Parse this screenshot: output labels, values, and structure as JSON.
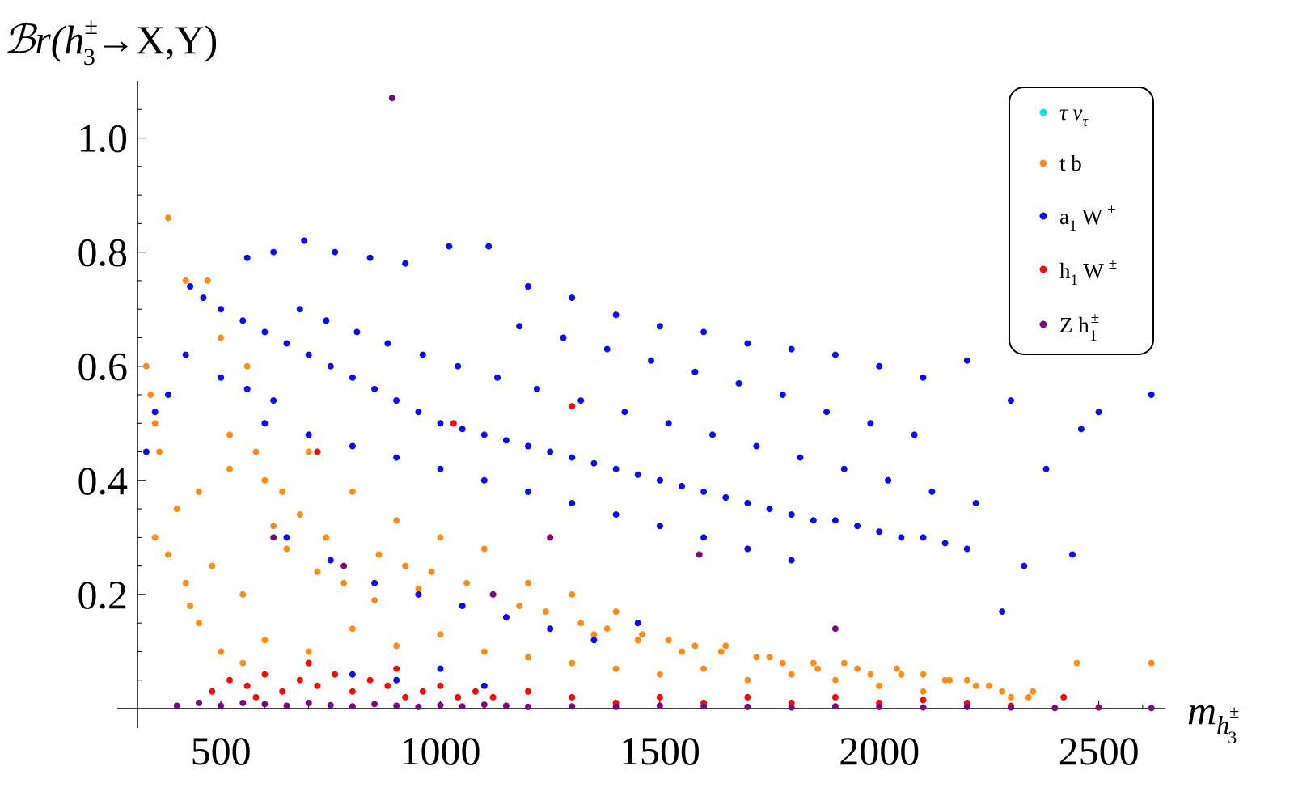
{
  "chart_data": {
    "type": "scatter",
    "title": "",
    "ylabel": {
      "prefix": "ℬr(",
      "h": "h",
      "sup": "±",
      "sub": "3",
      "suffix": "→X,Y)"
    },
    "xlabel": {
      "m": "m",
      "h": "h",
      "sup": "±",
      "sub": "3"
    },
    "xlim": [
      310,
      2650
    ],
    "ylim": [
      0,
      1.1
    ],
    "x_ticks": [
      500,
      1000,
      1500,
      2000,
      2500
    ],
    "x_tick_labels": [
      "500",
      "1000",
      "1500",
      "2000",
      "2500"
    ],
    "y_ticks": [
      0.2,
      0.4,
      0.6,
      0.8,
      1.0
    ],
    "y_tick_labels": [
      "0.2",
      "0.4",
      "0.6",
      "0.8",
      "1.0"
    ],
    "grid": false,
    "legend_position": "top-right",
    "series": [
      {
        "key": "tau",
        "name": {
          "main": "τ  ν",
          "sub": "τ",
          "sup": ""
        },
        "color": "#00e5e5",
        "points": []
      },
      {
        "key": "tb",
        "name": {
          "main": "t  b",
          "sub": "",
          "sup": ""
        },
        "color": "#ff8c14",
        "points": [
          [
            380,
            0.86
          ],
          [
            330,
            0.6
          ],
          [
            340,
            0.55
          ],
          [
            350,
            0.5
          ],
          [
            360,
            0.45
          ],
          [
            420,
            0.75
          ],
          [
            470,
            0.75
          ],
          [
            500,
            0.65
          ],
          [
            560,
            0.6
          ],
          [
            400,
            0.35
          ],
          [
            450,
            0.38
          ],
          [
            520,
            0.42
          ],
          [
            600,
            0.4
          ],
          [
            700,
            0.45
          ],
          [
            800,
            0.38
          ],
          [
            900,
            0.33
          ],
          [
            1000,
            0.3
          ],
          [
            1100,
            0.28
          ],
          [
            420,
            0.22
          ],
          [
            480,
            0.25
          ],
          [
            550,
            0.2
          ],
          [
            650,
            0.28
          ],
          [
            720,
            0.24
          ],
          [
            780,
            0.22
          ],
          [
            850,
            0.19
          ],
          [
            950,
            0.21
          ],
          [
            1050,
            0.18
          ],
          [
            1150,
            0.16
          ],
          [
            1250,
            0.14
          ],
          [
            1350,
            0.13
          ],
          [
            1450,
            0.12
          ],
          [
            1550,
            0.1
          ],
          [
            1650,
            0.11
          ],
          [
            1750,
            0.09
          ],
          [
            1850,
            0.08
          ],
          [
            1950,
            0.07
          ],
          [
            2050,
            0.06
          ],
          [
            2150,
            0.05
          ],
          [
            2250,
            0.04
          ],
          [
            2350,
            0.03
          ],
          [
            2450,
            0.08
          ],
          [
            2620,
            0.08
          ],
          [
            1300,
            0.2
          ],
          [
            1400,
            0.17
          ],
          [
            1200,
            0.22
          ],
          [
            600,
            0.12
          ],
          [
            700,
            0.1
          ],
          [
            800,
            0.14
          ],
          [
            900,
            0.11
          ],
          [
            1000,
            0.13
          ],
          [
            1100,
            0.1
          ],
          [
            1200,
            0.09
          ],
          [
            1300,
            0.08
          ],
          [
            1400,
            0.07
          ],
          [
            1500,
            0.06
          ],
          [
            1600,
            0.07
          ],
          [
            1700,
            0.05
          ],
          [
            1800,
            0.06
          ],
          [
            1900,
            0.05
          ],
          [
            2000,
            0.04
          ],
          [
            2100,
            0.03
          ],
          [
            2200,
            0.05
          ],
          [
            2300,
            0.02
          ],
          [
            450,
            0.15
          ],
          [
            500,
            0.1
          ],
          [
            550,
            0.08
          ],
          [
            350,
            0.3
          ],
          [
            380,
            0.27
          ],
          [
            430,
            0.18
          ],
          [
            620,
            0.32
          ],
          [
            680,
            0.34
          ],
          [
            740,
            0.3
          ],
          [
            860,
            0.27
          ],
          [
            920,
            0.25
          ],
          [
            980,
            0.24
          ],
          [
            1060,
            0.22
          ],
          [
            1120,
            0.2
          ],
          [
            1180,
            0.18
          ],
          [
            1240,
            0.17
          ],
          [
            1320,
            0.15
          ],
          [
            1380,
            0.14
          ],
          [
            1460,
            0.13
          ],
          [
            1520,
            0.12
          ],
          [
            1580,
            0.11
          ],
          [
            1640,
            0.1
          ],
          [
            1720,
            0.09
          ],
          [
            1780,
            0.08
          ],
          [
            1860,
            0.07
          ],
          [
            1920,
            0.08
          ],
          [
            1980,
            0.06
          ],
          [
            2040,
            0.07
          ],
          [
            2100,
            0.06
          ],
          [
            2160,
            0.05
          ],
          [
            2220,
            0.04
          ],
          [
            2280,
            0.03
          ],
          [
            2340,
            0.02
          ],
          [
            520,
            0.48
          ],
          [
            580,
            0.45
          ],
          [
            640,
            0.38
          ]
        ]
      },
      {
        "key": "aw",
        "name": {
          "main": "a",
          "sub": "1",
          "main2": " W",
          "sup": "±"
        },
        "color": "#0a0af5",
        "points": [
          [
            560,
            0.79
          ],
          [
            620,
            0.8
          ],
          [
            690,
            0.82
          ],
          [
            760,
            0.8
          ],
          [
            840,
            0.79
          ],
          [
            920,
            0.78
          ],
          [
            1020,
            0.81
          ],
          [
            1110,
            0.81
          ],
          [
            1200,
            0.74
          ],
          [
            1300,
            0.72
          ],
          [
            1400,
            0.69
          ],
          [
            1500,
            0.67
          ],
          [
            1600,
            0.66
          ],
          [
            1700,
            0.64
          ],
          [
            1800,
            0.63
          ],
          [
            1900,
            0.62
          ],
          [
            2000,
            0.6
          ],
          [
            2100,
            0.58
          ],
          [
            2200,
            0.61
          ],
          [
            2300,
            0.54
          ],
          [
            2500,
            0.52
          ],
          [
            2620,
            0.55
          ],
          [
            2460,
            0.49
          ],
          [
            2380,
            0.42
          ],
          [
            2330,
            0.25
          ],
          [
            2440,
            0.27
          ],
          [
            2280,
            0.17
          ],
          [
            430,
            0.74
          ],
          [
            460,
            0.72
          ],
          [
            500,
            0.7
          ],
          [
            550,
            0.68
          ],
          [
            600,
            0.66
          ],
          [
            650,
            0.64
          ],
          [
            700,
            0.62
          ],
          [
            750,
            0.6
          ],
          [
            800,
            0.58
          ],
          [
            850,
            0.56
          ],
          [
            900,
            0.54
          ],
          [
            950,
            0.52
          ],
          [
            1000,
            0.5
          ],
          [
            1050,
            0.49
          ],
          [
            1100,
            0.48
          ],
          [
            1150,
            0.47
          ],
          [
            1200,
            0.46
          ],
          [
            1250,
            0.45
          ],
          [
            1300,
            0.44
          ],
          [
            1350,
            0.43
          ],
          [
            1400,
            0.42
          ],
          [
            1450,
            0.41
          ],
          [
            1500,
            0.4
          ],
          [
            1550,
            0.39
          ],
          [
            1600,
            0.38
          ],
          [
            1650,
            0.37
          ],
          [
            1700,
            0.36
          ],
          [
            1750,
            0.35
          ],
          [
            1800,
            0.34
          ],
          [
            1850,
            0.33
          ],
          [
            1900,
            0.33
          ],
          [
            1950,
            0.32
          ],
          [
            2000,
            0.31
          ],
          [
            2050,
            0.3
          ],
          [
            2100,
            0.3
          ],
          [
            2150,
            0.29
          ],
          [
            2200,
            0.28
          ],
          [
            420,
            0.62
          ],
          [
            380,
            0.55
          ],
          [
            350,
            0.52
          ],
          [
            330,
            0.45
          ],
          [
            600,
            0.5
          ],
          [
            700,
            0.48
          ],
          [
            800,
            0.46
          ],
          [
            900,
            0.44
          ],
          [
            1000,
            0.42
          ],
          [
            1100,
            0.4
          ],
          [
            1200,
            0.38
          ],
          [
            1300,
            0.36
          ],
          [
            1400,
            0.34
          ],
          [
            1500,
            0.32
          ],
          [
            1600,
            0.3
          ],
          [
            1700,
            0.28
          ],
          [
            1800,
            0.26
          ],
          [
            650,
            0.3
          ],
          [
            750,
            0.26
          ],
          [
            850,
            0.22
          ],
          [
            950,
            0.2
          ],
          [
            1050,
            0.18
          ],
          [
            1150,
            0.16
          ],
          [
            1250,
            0.14
          ],
          [
            1350,
            0.12
          ],
          [
            1450,
            0.15
          ],
          [
            700,
            0.08
          ],
          [
            800,
            0.06
          ],
          [
            900,
            0.05
          ],
          [
            1000,
            0.07
          ],
          [
            1100,
            0.04
          ],
          [
            500,
            0.58
          ],
          [
            560,
            0.56
          ],
          [
            620,
            0.54
          ],
          [
            680,
            0.7
          ],
          [
            740,
            0.68
          ],
          [
            810,
            0.66
          ],
          [
            880,
            0.64
          ],
          [
            960,
            0.62
          ],
          [
            1040,
            0.6
          ],
          [
            1130,
            0.58
          ],
          [
            1220,
            0.56
          ],
          [
            1320,
            0.54
          ],
          [
            1420,
            0.52
          ],
          [
            1520,
            0.5
          ],
          [
            1620,
            0.48
          ],
          [
            1720,
            0.46
          ],
          [
            1820,
            0.44
          ],
          [
            1920,
            0.42
          ],
          [
            2020,
            0.4
          ],
          [
            2120,
            0.38
          ],
          [
            2220,
            0.36
          ],
          [
            1980,
            0.5
          ],
          [
            2080,
            0.48
          ],
          [
            1880,
            0.52
          ],
          [
            1780,
            0.55
          ],
          [
            1680,
            0.57
          ],
          [
            1580,
            0.59
          ],
          [
            1480,
            0.61
          ],
          [
            1380,
            0.63
          ],
          [
            1280,
            0.65
          ],
          [
            1180,
            0.67
          ]
        ]
      },
      {
        "key": "hw",
        "name": {
          "main": "h",
          "sub": "1",
          "main2": " W",
          "sup": "±"
        },
        "color": "#f50a0a",
        "points": [
          [
            1030,
            0.5
          ],
          [
            1300,
            0.53
          ],
          [
            720,
            0.45
          ],
          [
            480,
            0.03
          ],
          [
            520,
            0.05
          ],
          [
            560,
            0.04
          ],
          [
            600,
            0.06
          ],
          [
            640,
            0.03
          ],
          [
            680,
            0.05
          ],
          [
            720,
            0.04
          ],
          [
            760,
            0.06
          ],
          [
            800,
            0.03
          ],
          [
            840,
            0.05
          ],
          [
            880,
            0.04
          ],
          [
            920,
            0.02
          ],
          [
            960,
            0.03
          ],
          [
            1000,
            0.04
          ],
          [
            1040,
            0.02
          ],
          [
            1080,
            0.03
          ],
          [
            1120,
            0.02
          ],
          [
            1200,
            0.03
          ],
          [
            1300,
            0.02
          ],
          [
            1400,
            0.01
          ],
          [
            1500,
            0.02
          ],
          [
            1600,
            0.01
          ],
          [
            1700,
            0.02
          ],
          [
            1800,
            0.01
          ],
          [
            1900,
            0.02
          ],
          [
            2000,
            0.01
          ],
          [
            2100,
            0.015
          ],
          [
            2200,
            0.01
          ],
          [
            2300,
            0.005
          ],
          [
            2420,
            0.02
          ],
          [
            700,
            0.08
          ],
          [
            900,
            0.07
          ],
          [
            580,
            0.02
          ]
        ]
      },
      {
        "key": "zh",
        "name": {
          "main": "Z  h",
          "sub": "1",
          "sup": "±"
        },
        "color": "#7a0a7a",
        "points": [
          [
            890,
            1.07
          ],
          [
            1900,
            0.14
          ],
          [
            1590,
            0.27
          ],
          [
            400,
            0.005
          ],
          [
            450,
            0.01
          ],
          [
            500,
            0.005
          ],
          [
            550,
            0.01
          ],
          [
            600,
            0.008
          ],
          [
            650,
            0.005
          ],
          [
            700,
            0.01
          ],
          [
            750,
            0.006
          ],
          [
            800,
            0.004
          ],
          [
            850,
            0.008
          ],
          [
            900,
            0.005
          ],
          [
            950,
            0.003
          ],
          [
            1000,
            0.006
          ],
          [
            1050,
            0.004
          ],
          [
            1100,
            0.007
          ],
          [
            1150,
            0.005
          ],
          [
            1200,
            0.003
          ],
          [
            1300,
            0.004
          ],
          [
            1400,
            0.003
          ],
          [
            1500,
            0.005
          ],
          [
            1600,
            0.004
          ],
          [
            1700,
            0.003
          ],
          [
            1800,
            0.002
          ],
          [
            1900,
            0.004
          ],
          [
            2000,
            0.003
          ],
          [
            2100,
            0.002
          ],
          [
            2200,
            0.003
          ],
          [
            2300,
            0.002
          ],
          [
            2400,
            0.001
          ],
          [
            2500,
            0.002
          ],
          [
            2620,
            0.001
          ],
          [
            620,
            0.3
          ],
          [
            780,
            0.25
          ],
          [
            1120,
            0.2
          ],
          [
            1250,
            0.3
          ]
        ]
      }
    ]
  }
}
